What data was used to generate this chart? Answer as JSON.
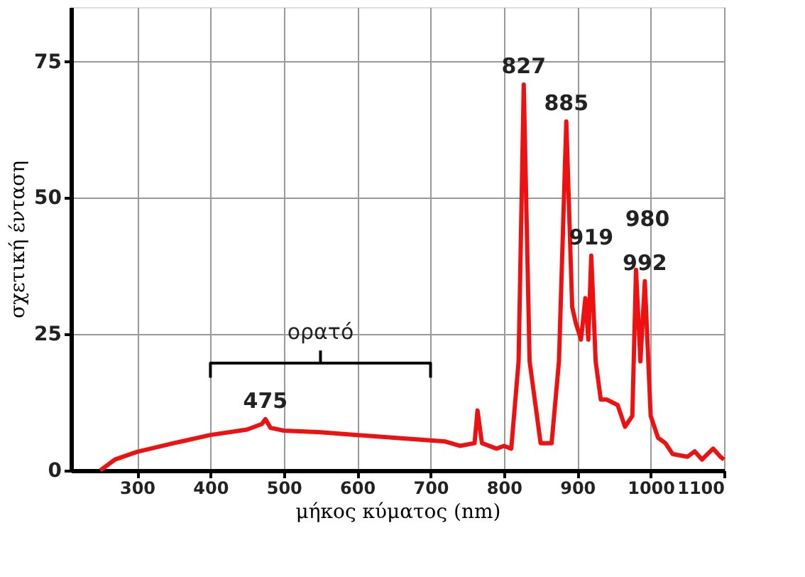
{
  "chart_data": {
    "type": "line",
    "xlabel": "μήκος κύματος (nm)",
    "ylabel": "σχετική ένταση",
    "x": [
      250,
      270,
      300,
      350,
      400,
      450,
      470,
      475,
      482,
      500,
      550,
      600,
      650,
      700,
      720,
      740,
      760,
      764,
      770,
      790,
      800,
      810,
      820,
      827,
      835,
      850,
      865,
      875,
      885,
      893,
      898,
      905,
      911,
      915,
      919,
      925,
      932,
      940,
      955,
      965,
      975,
      980,
      986,
      992,
      1000,
      1010,
      1020,
      1030,
      1050,
      1060,
      1070,
      1085,
      1095,
      1100
    ],
    "series": [
      {
        "color": "#ee1111",
        "values": [
          0,
          2,
          3.4,
          5,
          6.5,
          7.5,
          8.5,
          9.4,
          7.8,
          7.3,
          7,
          6.5,
          6,
          5.5,
          5.3,
          4.5,
          5,
          11,
          5,
          4,
          4.5,
          4,
          20,
          70.8,
          20,
          5,
          5,
          20,
          64,
          30,
          27,
          24,
          31.6,
          24,
          39.4,
          20,
          13,
          13,
          12,
          8,
          10,
          36.8,
          20,
          34.7,
          10,
          6,
          5,
          3,
          2.5,
          3.5,
          2,
          4,
          2.5,
          2
        ]
      },
      {
        "type": "line",
        "color": "#000000",
        "x": [
          400,
          400,
          700,
          700
        ],
        "values": [
          17,
          19.7,
          19.7,
          17
        ]
      },
      {
        "type": "line",
        "color": "#000000",
        "x": [
          550,
          550
        ],
        "values": [
          19.7,
          22
        ]
      }
    ],
    "xlim": [
      210,
      1100
    ],
    "ylim": [
      0,
      85
    ],
    "xticks": [
      300,
      400,
      500,
      600,
      700,
      800,
      900,
      1000,
      1100
    ],
    "yticks": [
      0,
      25,
      50,
      75
    ],
    "grid": true,
    "line_style": "solid",
    "marker": "none",
    "annotations": [
      {
        "text": "ορατό",
        "x": 550,
        "y": 22
      },
      {
        "text": "475",
        "x": 475,
        "y": 9.4
      },
      {
        "text": "827",
        "x": 827,
        "y": 70.8
      },
      {
        "text": "885",
        "x": 885,
        "y": 64
      },
      {
        "text": "919",
        "x": 919,
        "y": 39.4
      },
      {
        "text": "980",
        "x": 980,
        "y": 36.8
      },
      {
        "text": "992",
        "x": 992,
        "y": 34.7
      }
    ]
  }
}
